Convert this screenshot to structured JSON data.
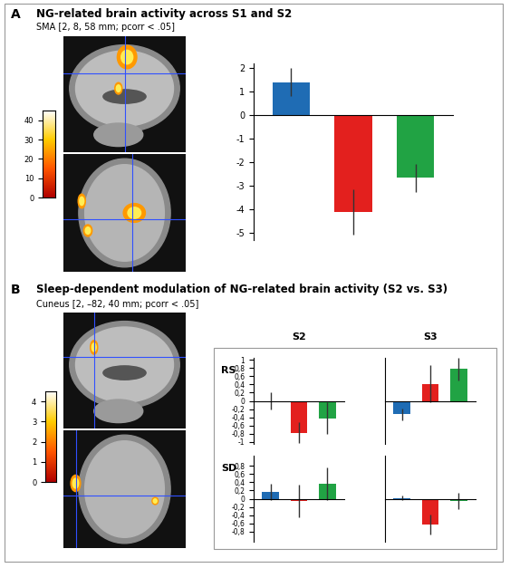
{
  "chart_data": [
    {
      "type": "bar",
      "annotations": [
        "A"
      ],
      "title": "NG-related brain activity across S1 and S2",
      "subtitle": "SMA [2, 8, 58 mm; pcorr < .05]",
      "categories": [
        null,
        null,
        null
      ],
      "values": [
        1.4,
        -4.1,
        -2.65
      ],
      "errors": [
        0.6,
        0.95,
        0.6
      ],
      "colors": [
        "#1f6cb4",
        "#e3201e",
        "#21a344"
      ],
      "ylim": [
        -5.3,
        2.2
      ],
      "yticks": [
        -5,
        -4,
        -3,
        -2,
        -1,
        0,
        1,
        2
      ],
      "colorbar_lim": [
        0,
        45
      ],
      "colorbar_ticks": [
        0,
        10,
        20,
        30,
        40
      ]
    },
    {
      "type": "bar",
      "annotations": [
        "B"
      ],
      "title": "Sleep-dependent modulation of NG-related brain activity (S2 vs. S3)",
      "subtitle": "Cuneus [2, –82, 40 mm; pcorr < .05]",
      "columns": [
        "S2",
        "S3"
      ],
      "rows": [
        "RS",
        "SD"
      ],
      "categories": [
        null,
        null,
        null
      ],
      "colors": [
        "#1f6cb4",
        "#e3201e",
        "#21a344"
      ],
      "ylim": [
        -1.05,
        1.05
      ],
      "panels": [
        [
          {
            "values": [
              0.0,
              -0.78,
              -0.42
            ],
            "errors": [
              0.2,
              0.25,
              0.38
            ],
            "yticks": [
              -1,
              {
                "value": -0.8,
                "label": "-0,8"
              },
              {
                "value": -0.6,
                "label": "-0,6"
              },
              {
                "value": -0.4,
                "label": "-0,4"
              },
              {
                "value": -0.2,
                "label": "-0,2"
              },
              0,
              {
                "value": 0.2,
                "label": "0,2"
              },
              {
                "value": 0.4,
                "label": "0,4"
              },
              {
                "value": 0.6,
                "label": "0,6"
              },
              {
                "value": 0.8,
                "label": "0,8"
              },
              1
            ]
          },
          {
            "values": [
              -0.33,
              0.42,
              0.78
            ],
            "errors": [
              0.15,
              0.45,
              0.28
            ],
            "tick_labels": false
          }
        ],
        [
          {
            "values": [
              0.17,
              -0.05,
              0.37
            ],
            "errors": [
              0.2,
              0.4,
              0.4
            ],
            "yticks": [
              {
                "value": -0.8,
                "label": "-0,8"
              },
              {
                "value": -0.6,
                "label": "-0,6"
              },
              {
                "value": -0.4,
                "label": "-0,4"
              },
              {
                "value": -0.2,
                "label": "-0,2"
              },
              0,
              {
                "value": 0.2,
                "label": "0,2"
              },
              {
                "value": 0.4,
                "label": "0,4"
              },
              {
                "value": 0.6,
                "label": "0,6"
              },
              {
                "value": 0.8,
                "label": "0,8"
              }
            ]
          },
          {
            "values": [
              0.02,
              -0.63,
              -0.05
            ],
            "errors": [
              0.05,
              0.25,
              0.2
            ],
            "tick_labels": false
          }
        ]
      ],
      "colorbar_lim": [
        0,
        4.5
      ],
      "colorbar_ticks": [
        0,
        1,
        2,
        3,
        4
      ]
    }
  ]
}
